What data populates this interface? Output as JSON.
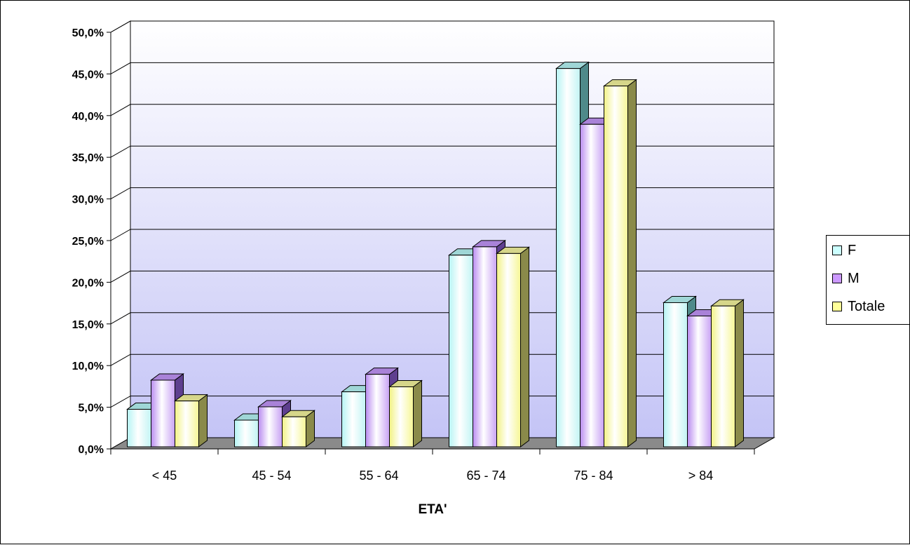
{
  "chart_data": {
    "type": "bar",
    "title": "",
    "xlabel": "ETA'",
    "ylabel": "",
    "categories": [
      "< 45",
      "45 - 54",
      "55 - 64",
      "65 - 74",
      "75 - 84",
      "> 84"
    ],
    "series": [
      {
        "name": "F",
        "values": [
          4.5,
          3.2,
          6.6,
          23.0,
          45.4,
          17.3
        ],
        "color": "#CCFFFF"
      },
      {
        "name": "M",
        "values": [
          8.0,
          4.8,
          8.7,
          24.0,
          38.7,
          15.7
        ],
        "color": "#CC99FF"
      },
      {
        "name": "Totale",
        "values": [
          5.5,
          3.6,
          7.2,
          23.2,
          43.3,
          16.9
        ],
        "color": "#FFFF99"
      }
    ],
    "ylim": [
      0,
      50
    ],
    "yticks": [
      "0,0%",
      "5,0%",
      "10,0%",
      "15,0%",
      "20,0%",
      "25,0%",
      "30,0%",
      "35,0%",
      "40,0%",
      "45,0%",
      "50,0%"
    ],
    "grid": true,
    "legend": "right"
  }
}
